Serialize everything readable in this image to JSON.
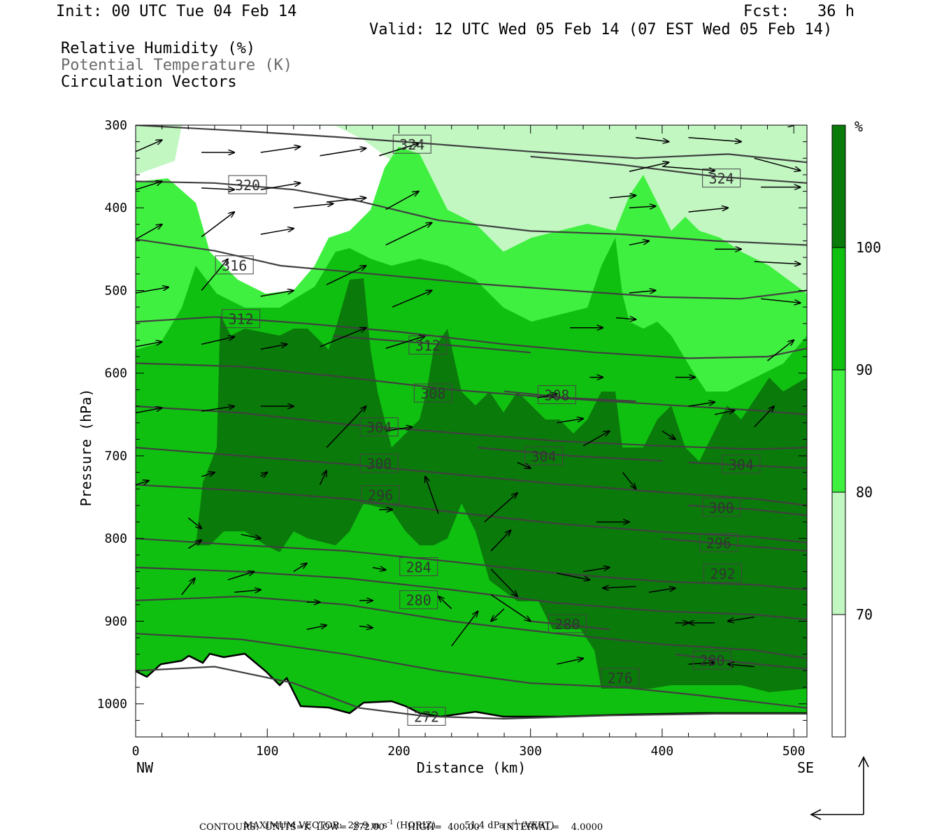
{
  "header": {
    "init": "Init: 00 UTC Tue 04 Feb 14",
    "fcst": "Fcst:   36 h",
    "valid": "Valid: 12 UTC Wed 05 Feb 14 (07 EST Wed 05 Feb 14)",
    "field1": "Relative Humidity (%)",
    "field2": "Potential Temperature (K)",
    "field3": "Circulation Vectors"
  },
  "chart_data": {
    "type": "heatmap",
    "xlabel": "Distance (km)",
    "ylabel": "Pressure (hPa)",
    "xlim": [
      0,
      510
    ],
    "ylim": [
      1040,
      300
    ],
    "x_ticks": [
      "0",
      "100",
      "200",
      "300",
      "400",
      "500"
    ],
    "y_ticks": [
      "300",
      "400",
      "500",
      "600",
      "700",
      "800",
      "900",
      "1000"
    ],
    "left_end_label": "NW",
    "right_end_label": "SE",
    "colorbar": {
      "unit": "%",
      "levels": [
        "70",
        "80",
        "90",
        "100"
      ],
      "colors": [
        "#ffffff",
        "#c2f7c2",
        "#40f040",
        "#10c010",
        "#0a7a0a"
      ]
    },
    "colors": {
      "rh70": "#c2f7c2",
      "rh80": "#40f040",
      "rh90": "#10c010",
      "rh100": "#0a7a0a",
      "theta": "#404040",
      "vector": "#000000"
    },
    "theta_contours": [
      {
        "value": "324",
        "label_at": [
          210,
          323
        ],
        "points": [
          [
            0,
            300
          ],
          [
            80,
            307
          ],
          [
            150,
            314
          ],
          [
            220,
            322
          ],
          [
            300,
            332
          ],
          [
            380,
            340
          ],
          [
            450,
            335
          ],
          [
            510,
            345
          ]
        ]
      },
      {
        "value": "324",
        "label_at": [
          445,
          364
        ],
        "points": [
          [
            300,
            338
          ],
          [
            370,
            348
          ],
          [
            440,
            362
          ],
          [
            510,
            370
          ]
        ]
      },
      {
        "value": "320",
        "label_at": [
          85,
          372
        ],
        "points": [
          [
            0,
            368
          ],
          [
            60,
            370
          ],
          [
            120,
            378
          ],
          [
            170,
            392
          ],
          [
            230,
            415
          ],
          [
            300,
            428
          ],
          [
            370,
            432
          ],
          [
            440,
            440
          ],
          [
            510,
            445
          ]
        ]
      },
      {
        "value": "316",
        "label_at": [
          75,
          469
        ],
        "points": [
          [
            0,
            438
          ],
          [
            60,
            452
          ],
          [
            110,
            470
          ],
          [
            180,
            480
          ],
          [
            260,
            492
          ],
          [
            330,
            500
          ],
          [
            400,
            508
          ],
          [
            460,
            510
          ],
          [
            510,
            500
          ]
        ]
      },
      {
        "value": "312",
        "label_at": [
          80,
          534
        ],
        "points": [
          [
            0,
            538
          ],
          [
            60,
            532
          ],
          [
            130,
            540
          ],
          [
            200,
            550
          ],
          [
            280,
            565
          ],
          [
            350,
            575
          ],
          [
            420,
            582
          ],
          [
            480,
            580
          ],
          [
            510,
            570
          ]
        ]
      },
      {
        "value": "312",
        "label_at": [
          222,
          566
        ],
        "points": [
          [
            150,
            555
          ],
          [
            230,
            565
          ],
          [
            300,
            575
          ]
        ]
      },
      {
        "value": "308",
        "label_at": [
          226,
          624
        ],
        "points": [
          [
            0,
            588
          ],
          [
            80,
            592
          ],
          [
            160,
            605
          ],
          [
            240,
            620
          ],
          [
            320,
            630
          ],
          [
            400,
            638
          ],
          [
            470,
            645
          ],
          [
            510,
            650
          ]
        ]
      },
      {
        "value": "308",
        "label_at": [
          320,
          626
        ],
        "points": [
          [
            280,
            622
          ],
          [
            330,
            630
          ],
          [
            380,
            634
          ]
        ]
      },
      {
        "value": "304",
        "label_at": [
          185,
          665
        ],
        "points": [
          [
            0,
            640
          ],
          [
            80,
            648
          ],
          [
            160,
            662
          ],
          [
            240,
            672
          ],
          [
            320,
            682
          ],
          [
            400,
            688
          ],
          [
            470,
            692
          ],
          [
            510,
            690
          ]
        ]
      },
      {
        "value": "304",
        "label_at": [
          310,
          700
        ],
        "points": [
          [
            260,
            690
          ],
          [
            330,
            700
          ],
          [
            400,
            706
          ]
        ]
      },
      {
        "value": "304",
        "label_at": [
          460,
          710
        ],
        "points": [
          [
            420,
            708
          ],
          [
            470,
            712
          ],
          [
            510,
            715
          ]
        ]
      },
      {
        "value": "300",
        "label_at": [
          185,
          709
        ],
        "points": [
          [
            0,
            690
          ],
          [
            80,
            700
          ],
          [
            160,
            710
          ],
          [
            240,
            722
          ],
          [
            320,
            734
          ],
          [
            400,
            744
          ],
          [
            470,
            752
          ],
          [
            510,
            760
          ]
        ]
      },
      {
        "value": "296",
        "label_at": [
          186,
          747
        ],
        "points": [
          [
            0,
            735
          ],
          [
            80,
            742
          ],
          [
            160,
            752
          ],
          [
            240,
            768
          ],
          [
            320,
            782
          ],
          [
            400,
            792
          ],
          [
            470,
            798
          ],
          [
            510,
            805
          ]
        ]
      },
      {
        "value": "300",
        "label_at": [
          445,
          762
        ],
        "points": [
          [
            420,
            760
          ],
          [
            470,
            765
          ],
          [
            510,
            772
          ]
        ]
      },
      {
        "value": "296",
        "label_at": [
          443,
          805
        ],
        "points": [
          [
            400,
            800
          ],
          [
            470,
            810
          ],
          [
            510,
            815
          ]
        ]
      },
      {
        "value": "292",
        "label_at": [
          446,
          842
        ],
        "points": [
          [
            0,
            800
          ],
          [
            80,
            808
          ],
          [
            160,
            815
          ],
          [
            240,
            828
          ],
          [
            320,
            842
          ],
          [
            400,
            852
          ],
          [
            470,
            856
          ],
          [
            510,
            862
          ]
        ]
      },
      {
        "value": "284",
        "label_at": [
          215,
          834
        ],
        "points": [
          [
            0,
            835
          ],
          [
            80,
            840
          ],
          [
            160,
            848
          ],
          [
            240,
            862
          ],
          [
            320,
            878
          ],
          [
            400,
            888
          ],
          [
            470,
            892
          ],
          [
            510,
            898
          ]
        ]
      },
      {
        "value": "280",
        "label_at": [
          215,
          874
        ],
        "points": [
          [
            0,
            875
          ],
          [
            80,
            870
          ],
          [
            160,
            880
          ],
          [
            240,
            900
          ],
          [
            320,
            915
          ],
          [
            400,
            928
          ],
          [
            470,
            935
          ],
          [
            510,
            945
          ]
        ]
      },
      {
        "value": "280",
        "label_at": [
          328,
          903
        ],
        "points": [
          [
            300,
            900
          ],
          [
            330,
            905
          ],
          [
            360,
            910
          ]
        ]
      },
      {
        "value": "280",
        "label_at": [
          438,
          947
        ],
        "points": [
          [
            410,
            940
          ],
          [
            460,
            950
          ],
          [
            510,
            958
          ]
        ]
      },
      {
        "value": "276",
        "label_at": [
          368,
          968
        ],
        "points": [
          [
            0,
            915
          ],
          [
            80,
            922
          ],
          [
            160,
            940
          ],
          [
            230,
            960
          ],
          [
            300,
            975
          ],
          [
            370,
            980
          ],
          [
            430,
            990
          ],
          [
            510,
            1005
          ]
        ]
      },
      {
        "value": "272",
        "label_at": [
          221,
          1015
        ],
        "points": [
          [
            0,
            960
          ],
          [
            60,
            955
          ],
          [
            120,
            975
          ],
          [
            170,
            1005
          ],
          [
            220,
            1015
          ],
          [
            280,
            1018
          ],
          [
            360,
            1014
          ],
          [
            440,
            1012
          ],
          [
            510,
            1012
          ]
        ]
      }
    ],
    "vectors": [
      [
        0,
        332,
        20,
        318
      ],
      [
        50,
        333,
        75,
        333
      ],
      [
        95,
        333,
        125,
        326
      ],
      [
        140,
        337,
        175,
        328
      ],
      [
        185,
        337,
        215,
        322
      ],
      [
        0,
        378,
        20,
        368
      ],
      [
        50,
        376,
        75,
        378
      ],
      [
        95,
        378,
        125,
        370
      ],
      [
        120,
        400,
        150,
        395
      ],
      [
        145,
        393,
        175,
        388
      ],
      [
        0,
        438,
        20,
        420
      ],
      [
        50,
        435,
        75,
        405
      ],
      [
        95,
        432,
        120,
        425
      ],
      [
        190,
        402,
        215,
        380
      ],
      [
        190,
        445,
        225,
        418
      ],
      [
        0,
        503,
        25,
        496
      ],
      [
        50,
        500,
        70,
        462
      ],
      [
        95,
        507,
        120,
        500
      ],
      [
        145,
        493,
        175,
        470
      ],
      [
        195,
        520,
        225,
        500
      ],
      [
        0,
        568,
        20,
        562
      ],
      [
        50,
        565,
        75,
        556
      ],
      [
        95,
        571,
        115,
        565
      ],
      [
        140,
        568,
        175,
        545
      ],
      [
        190,
        570,
        220,
        555
      ],
      [
        0,
        648,
        20,
        642
      ],
      [
        50,
        646,
        75,
        640
      ],
      [
        95,
        640,
        120,
        640
      ],
      [
        145,
        690,
        175,
        640
      ],
      [
        190,
        670,
        210,
        665
      ],
      [
        0,
        735,
        10,
        730
      ],
      [
        50,
        725,
        60,
        720
      ],
      [
        95,
        725,
        100,
        720
      ],
      [
        140,
        735,
        145,
        718
      ],
      [
        185,
        765,
        195,
        765
      ],
      [
        40,
        775,
        50,
        788
      ],
      [
        80,
        795,
        95,
        800
      ],
      [
        40,
        812,
        50,
        802
      ],
      [
        70,
        850,
        90,
        840
      ],
      [
        120,
        840,
        130,
        830
      ],
      [
        35,
        868,
        45,
        848
      ],
      [
        75,
        865,
        95,
        862
      ],
      [
        130,
        877,
        140,
        877
      ],
      [
        170,
        875,
        180,
        875
      ],
      [
        180,
        835,
        190,
        838
      ],
      [
        130,
        910,
        145,
        905
      ],
      [
        170,
        906,
        180,
        908
      ],
      [
        240,
        930,
        260,
        888
      ],
      [
        270,
        868,
        300,
        900
      ],
      [
        270,
        837,
        290,
        870
      ],
      [
        230,
        770,
        220,
        725
      ],
      [
        240,
        885,
        230,
        870
      ],
      [
        280,
        885,
        270,
        900
      ],
      [
        270,
        815,
        285,
        790
      ],
      [
        265,
        780,
        290,
        745
      ],
      [
        290,
        708,
        300,
        715
      ],
      [
        320,
        842,
        345,
        850
      ],
      [
        320,
        952,
        340,
        945
      ],
      [
        305,
        630,
        320,
        625
      ],
      [
        320,
        660,
        340,
        655
      ],
      [
        340,
        688,
        360,
        670
      ],
      [
        345,
        605,
        355,
        605
      ],
      [
        330,
        545,
        355,
        545
      ],
      [
        365,
        533,
        380,
        535
      ],
      [
        375,
        503,
        395,
        500
      ],
      [
        375,
        445,
        390,
        440
      ],
      [
        375,
        400,
        395,
        398
      ],
      [
        360,
        388,
        380,
        385
      ],
      [
        375,
        356,
        405,
        345
      ],
      [
        380,
        315,
        405,
        320
      ],
      [
        400,
        350,
        440,
        355
      ],
      [
        420,
        315,
        460,
        320
      ],
      [
        470,
        295,
        500,
        300
      ],
      [
        470,
        340,
        505,
        355
      ],
      [
        475,
        375,
        505,
        375
      ],
      [
        420,
        405,
        450,
        400
      ],
      [
        440,
        450,
        460,
        450
      ],
      [
        470,
        465,
        505,
        468
      ],
      [
        475,
        510,
        505,
        515
      ],
      [
        480,
        585,
        500,
        560
      ],
      [
        420,
        640,
        440,
        635
      ],
      [
        440,
        650,
        455,
        645
      ],
      [
        470,
        665,
        485,
        640
      ],
      [
        410,
        605,
        425,
        605
      ],
      [
        400,
        670,
        410,
        680
      ],
      [
        370,
        720,
        380,
        740
      ],
      [
        350,
        780,
        375,
        780
      ],
      [
        340,
        840,
        360,
        835
      ],
      [
        380,
        858,
        355,
        860
      ],
      [
        390,
        865,
        410,
        860
      ],
      [
        410,
        902,
        420,
        902
      ],
      [
        420,
        952,
        440,
        950
      ],
      [
        440,
        902,
        420,
        902
      ],
      [
        470,
        895,
        450,
        900
      ],
      [
        470,
        955,
        450,
        952
      ]
    ],
    "footer_line1": "MAXIMUM VECTOR:  28.9 m s",
    "footer_exp1": "-1",
    "footer_horiz": "(HORIZ)",
    "footer_vert_val": "51.4 dPa s",
    "footer_exp2": "-1",
    "footer_vert": "(VERT)",
    "footer_line2": "CONTOURS:  UNITS=K  LOW=  272.00        HIGH=  400.00        INTERVAL=    4.0000"
  }
}
